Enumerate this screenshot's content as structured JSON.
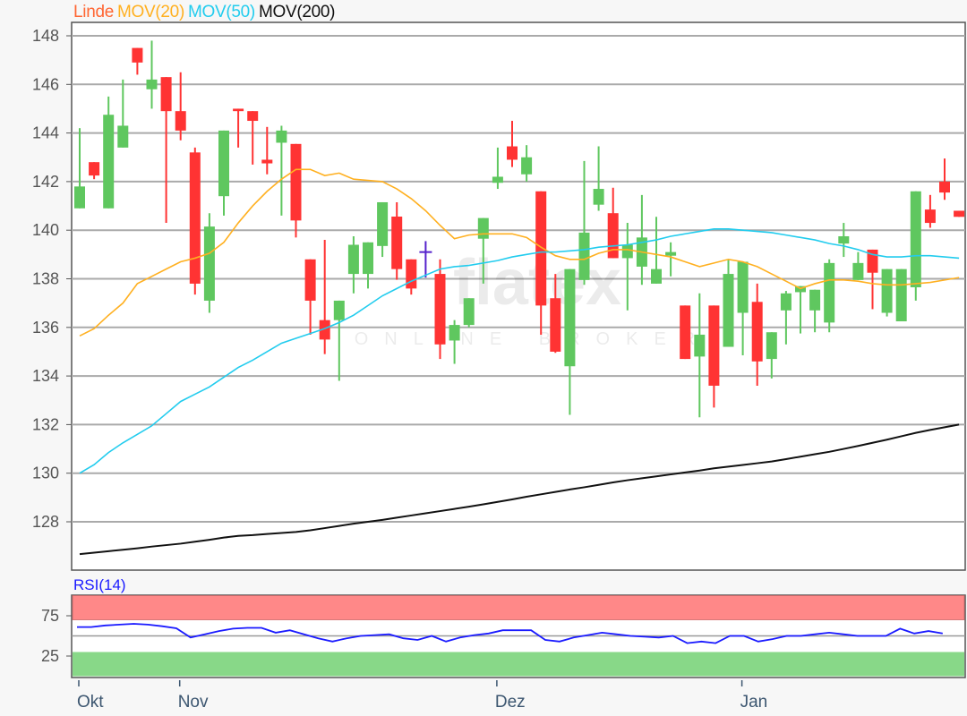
{
  "legend": {
    "instrument": {
      "label": "Linde",
      "color": "#ff6633"
    },
    "ma20": {
      "label": "MOV(20)",
      "color": "#ffb020"
    },
    "ma50": {
      "label": "MOV(50)",
      "color": "#22ccee"
    },
    "ma200": {
      "label": "MOV(200)",
      "color": "#111111"
    }
  },
  "watermark": {
    "logo": "flatex",
    "tagline": "ONLINE BROKER"
  },
  "chart_data": [
    {
      "type": "candlestick",
      "title": "",
      "ylim": [
        126,
        148.5
      ],
      "yticks": [
        "128",
        "130",
        "132",
        "134",
        "136",
        "138",
        "140",
        "142",
        "144",
        "146",
        "148"
      ],
      "grid": true,
      "x_labels": [
        {
          "label": "Okt",
          "index": 0
        },
        {
          "label": "Nov",
          "index": 7
        },
        {
          "label": "Dez",
          "index": 29
        },
        {
          "label": "Jan",
          "index": 46
        }
      ],
      "colors": {
        "up": "#5fc75f",
        "down": "#ff3333",
        "doji": "#5522cc"
      },
      "candles_ohlc": [
        [
          140.9,
          144.2,
          140.9,
          141.8
        ],
        [
          142.8,
          142.8,
          142.1,
          142.25
        ],
        [
          140.9,
          145.5,
          140.9,
          144.75
        ],
        [
          143.4,
          146.2,
          143.4,
          144.3
        ],
        [
          147.5,
          147.5,
          146.4,
          146.9
        ],
        [
          145.8,
          147.8,
          145.0,
          146.2
        ],
        [
          146.3,
          146.3,
          140.3,
          144.9
        ],
        [
          144.9,
          146.5,
          143.7,
          144.1
        ],
        [
          143.2,
          143.4,
          137.35,
          137.8
        ],
        [
          137.1,
          140.7,
          136.6,
          140.15
        ],
        [
          141.4,
          144.1,
          140.6,
          144.1
        ],
        [
          145.0,
          145.0,
          143.4,
          144.9
        ],
        [
          144.9,
          144.9,
          142.7,
          144.5
        ],
        [
          142.9,
          144.25,
          142.3,
          142.75
        ],
        [
          143.6,
          144.3,
          140.6,
          144.1
        ],
        [
          143.55,
          143.55,
          139.7,
          140.4
        ],
        [
          138.8,
          138.8,
          135.7,
          137.1
        ],
        [
          136.3,
          139.6,
          134.9,
          135.5
        ],
        [
          136.3,
          137.1,
          133.8,
          137.1
        ],
        [
          138.2,
          139.75,
          137.4,
          139.4
        ],
        [
          138.2,
          139.5,
          137.6,
          139.5
        ],
        [
          139.35,
          141.15,
          138.9,
          141.15
        ],
        [
          140.56,
          141.15,
          137.96,
          138.4
        ],
        [
          138.8,
          138.8,
          137.35,
          137.6
        ],
        [
          139.1,
          139.55,
          138.05,
          139.1
        ],
        [
          138.2,
          138.8,
          134.7,
          135.3
        ],
        [
          135.46,
          136.3,
          134.5,
          136.1
        ],
        [
          136.1,
          137.2,
          136.0,
          137.2
        ],
        [
          139.65,
          140.5,
          137.8,
          140.5
        ],
        [
          141.95,
          143.4,
          141.7,
          142.2
        ],
        [
          143.45,
          144.5,
          142.6,
          142.9
        ],
        [
          142.3,
          143.5,
          142.0,
          143.0
        ],
        [
          141.6,
          141.6,
          135.7,
          136.9
        ],
        [
          137.2,
          138.2,
          134.95,
          135.0
        ],
        [
          134.4,
          138.4,
          132.4,
          138.4
        ],
        [
          137.95,
          142.85,
          137.75,
          139.9
        ],
        [
          141.05,
          143.45,
          140.8,
          141.7
        ],
        [
          140.7,
          141.75,
          138.85,
          138.85
        ],
        [
          138.85,
          140.3,
          136.7,
          139.4
        ],
        [
          138.5,
          141.45,
          137.75,
          139.7
        ],
        [
          137.8,
          140.55,
          137.8,
          138.4
        ],
        [
          138.95,
          139.5,
          138.1,
          139.1
        ],
        [
          136.9,
          136.9,
          134.7,
          134.7
        ],
        [
          134.8,
          137.4,
          132.3,
          135.7
        ],
        [
          136.9,
          136.9,
          132.7,
          133.6
        ],
        [
          135.2,
          138.8,
          135.2,
          138.2
        ],
        [
          136.6,
          138.7,
          134.85,
          138.7
        ],
        [
          137.05,
          137.8,
          133.6,
          134.6
        ],
        [
          134.7,
          135.8,
          133.9,
          135.8
        ],
        [
          136.7,
          137.5,
          135.3,
          137.4
        ],
        [
          137.45,
          137.7,
          135.75,
          137.7
        ],
        [
          136.7,
          137.55,
          135.8,
          137.55
        ],
        [
          136.2,
          138.8,
          135.8,
          138.65
        ],
        [
          139.45,
          140.3,
          138.9,
          139.75
        ],
        [
          137.95,
          139.1,
          137.95,
          138.65
        ],
        [
          139.2,
          139.2,
          136.75,
          138.25
        ],
        [
          136.6,
          138.4,
          136.45,
          138.4
        ],
        [
          136.25,
          138.4,
          136.25,
          138.4
        ],
        [
          137.65,
          141.6,
          137.1,
          141.6
        ],
        [
          140.85,
          141.45,
          140.1,
          140.3
        ],
        [
          142.0,
          142.95,
          141.25,
          141.55
        ],
        [
          140.8,
          140.8,
          140.55,
          140.55
        ]
      ],
      "series": [
        {
          "name": "MOV(20)",
          "color": "#ffb020",
          "values": [
            135.65,
            135.95,
            136.5,
            137.0,
            137.8,
            138.1,
            138.4,
            138.7,
            138.85,
            139.05,
            139.5,
            140.3,
            141.0,
            141.6,
            142.1,
            142.5,
            142.5,
            142.25,
            142.35,
            142.1,
            142.05,
            142.0,
            141.7,
            141.3,
            140.8,
            140.2,
            139.65,
            139.8,
            139.85,
            139.85,
            139.85,
            139.7,
            139.3,
            138.95,
            138.8,
            138.8,
            139.05,
            139.2,
            139.2,
            139.1,
            139.0,
            138.9,
            138.7,
            138.5,
            138.65,
            138.8,
            138.7,
            138.5,
            138.2,
            137.9,
            137.6,
            137.8,
            137.95,
            137.95,
            137.9,
            137.8,
            137.75,
            137.75,
            137.8,
            137.85,
            137.95,
            138.05
          ]
        },
        {
          "name": "MOV(50)",
          "color": "#22ccee",
          "values": [
            130.0,
            130.35,
            130.85,
            131.25,
            131.6,
            131.95,
            132.45,
            132.95,
            133.25,
            133.55,
            133.95,
            134.35,
            134.65,
            135.0,
            135.35,
            135.55,
            135.75,
            135.95,
            136.2,
            136.5,
            136.9,
            137.3,
            137.6,
            137.9,
            138.15,
            138.4,
            138.5,
            138.55,
            138.65,
            138.75,
            138.9,
            139.0,
            139.1,
            139.1,
            139.15,
            139.2,
            139.3,
            139.35,
            139.4,
            139.5,
            139.6,
            139.75,
            139.85,
            139.95,
            140.05,
            140.05,
            140.0,
            139.95,
            139.9,
            139.8,
            139.7,
            139.6,
            139.45,
            139.35,
            139.2,
            139.0,
            138.9,
            138.9,
            138.95,
            138.95,
            138.9,
            138.85
          ]
        },
        {
          "name": "MOV(200)",
          "color": "#111111",
          "values": [
            126.67,
            126.73,
            126.79,
            126.85,
            126.91,
            126.98,
            127.04,
            127.1,
            127.18,
            127.26,
            127.35,
            127.42,
            127.45,
            127.5,
            127.54,
            127.58,
            127.65,
            127.74,
            127.83,
            127.92,
            128.0,
            128.08,
            128.17,
            128.26,
            128.35,
            128.44,
            128.53,
            128.62,
            128.72,
            128.82,
            128.92,
            129.03,
            129.13,
            129.23,
            129.33,
            129.42,
            129.52,
            129.62,
            129.71,
            129.79,
            129.87,
            129.95,
            130.03,
            130.11,
            130.2,
            130.27,
            130.34,
            130.41,
            130.48,
            130.58,
            130.68,
            130.78,
            130.88,
            131.0,
            131.12,
            131.25,
            131.38,
            131.52,
            131.66,
            131.78,
            131.89,
            132.0
          ]
        }
      ]
    },
    {
      "type": "line",
      "title": "RSI(14)",
      "ylim": [
        0,
        100
      ],
      "yticks": [
        "25",
        "75"
      ],
      "bands": [
        {
          "from": 70,
          "to": 100,
          "color": "#ff8888"
        },
        {
          "from": 0,
          "to": 30,
          "color": "#88d888"
        }
      ],
      "midline": 50,
      "series": [
        {
          "name": "RSI(14)",
          "color": "#1a1aff",
          "values": [
            61,
            61,
            63,
            64,
            65,
            64,
            62,
            59.5,
            48,
            52,
            56,
            59,
            60,
            60,
            54,
            57,
            52,
            47,
            43,
            47,
            50,
            51,
            52,
            47,
            45,
            50,
            43,
            48,
            51,
            53,
            57,
            57,
            57,
            45,
            43,
            48,
            51,
            54,
            52,
            50,
            49,
            48,
            50,
            41,
            43,
            41,
            50,
            50,
            43,
            46,
            50,
            50,
            52,
            54,
            52,
            50,
            50,
            50,
            59,
            53,
            56,
            53
          ]
        }
      ]
    }
  ]
}
